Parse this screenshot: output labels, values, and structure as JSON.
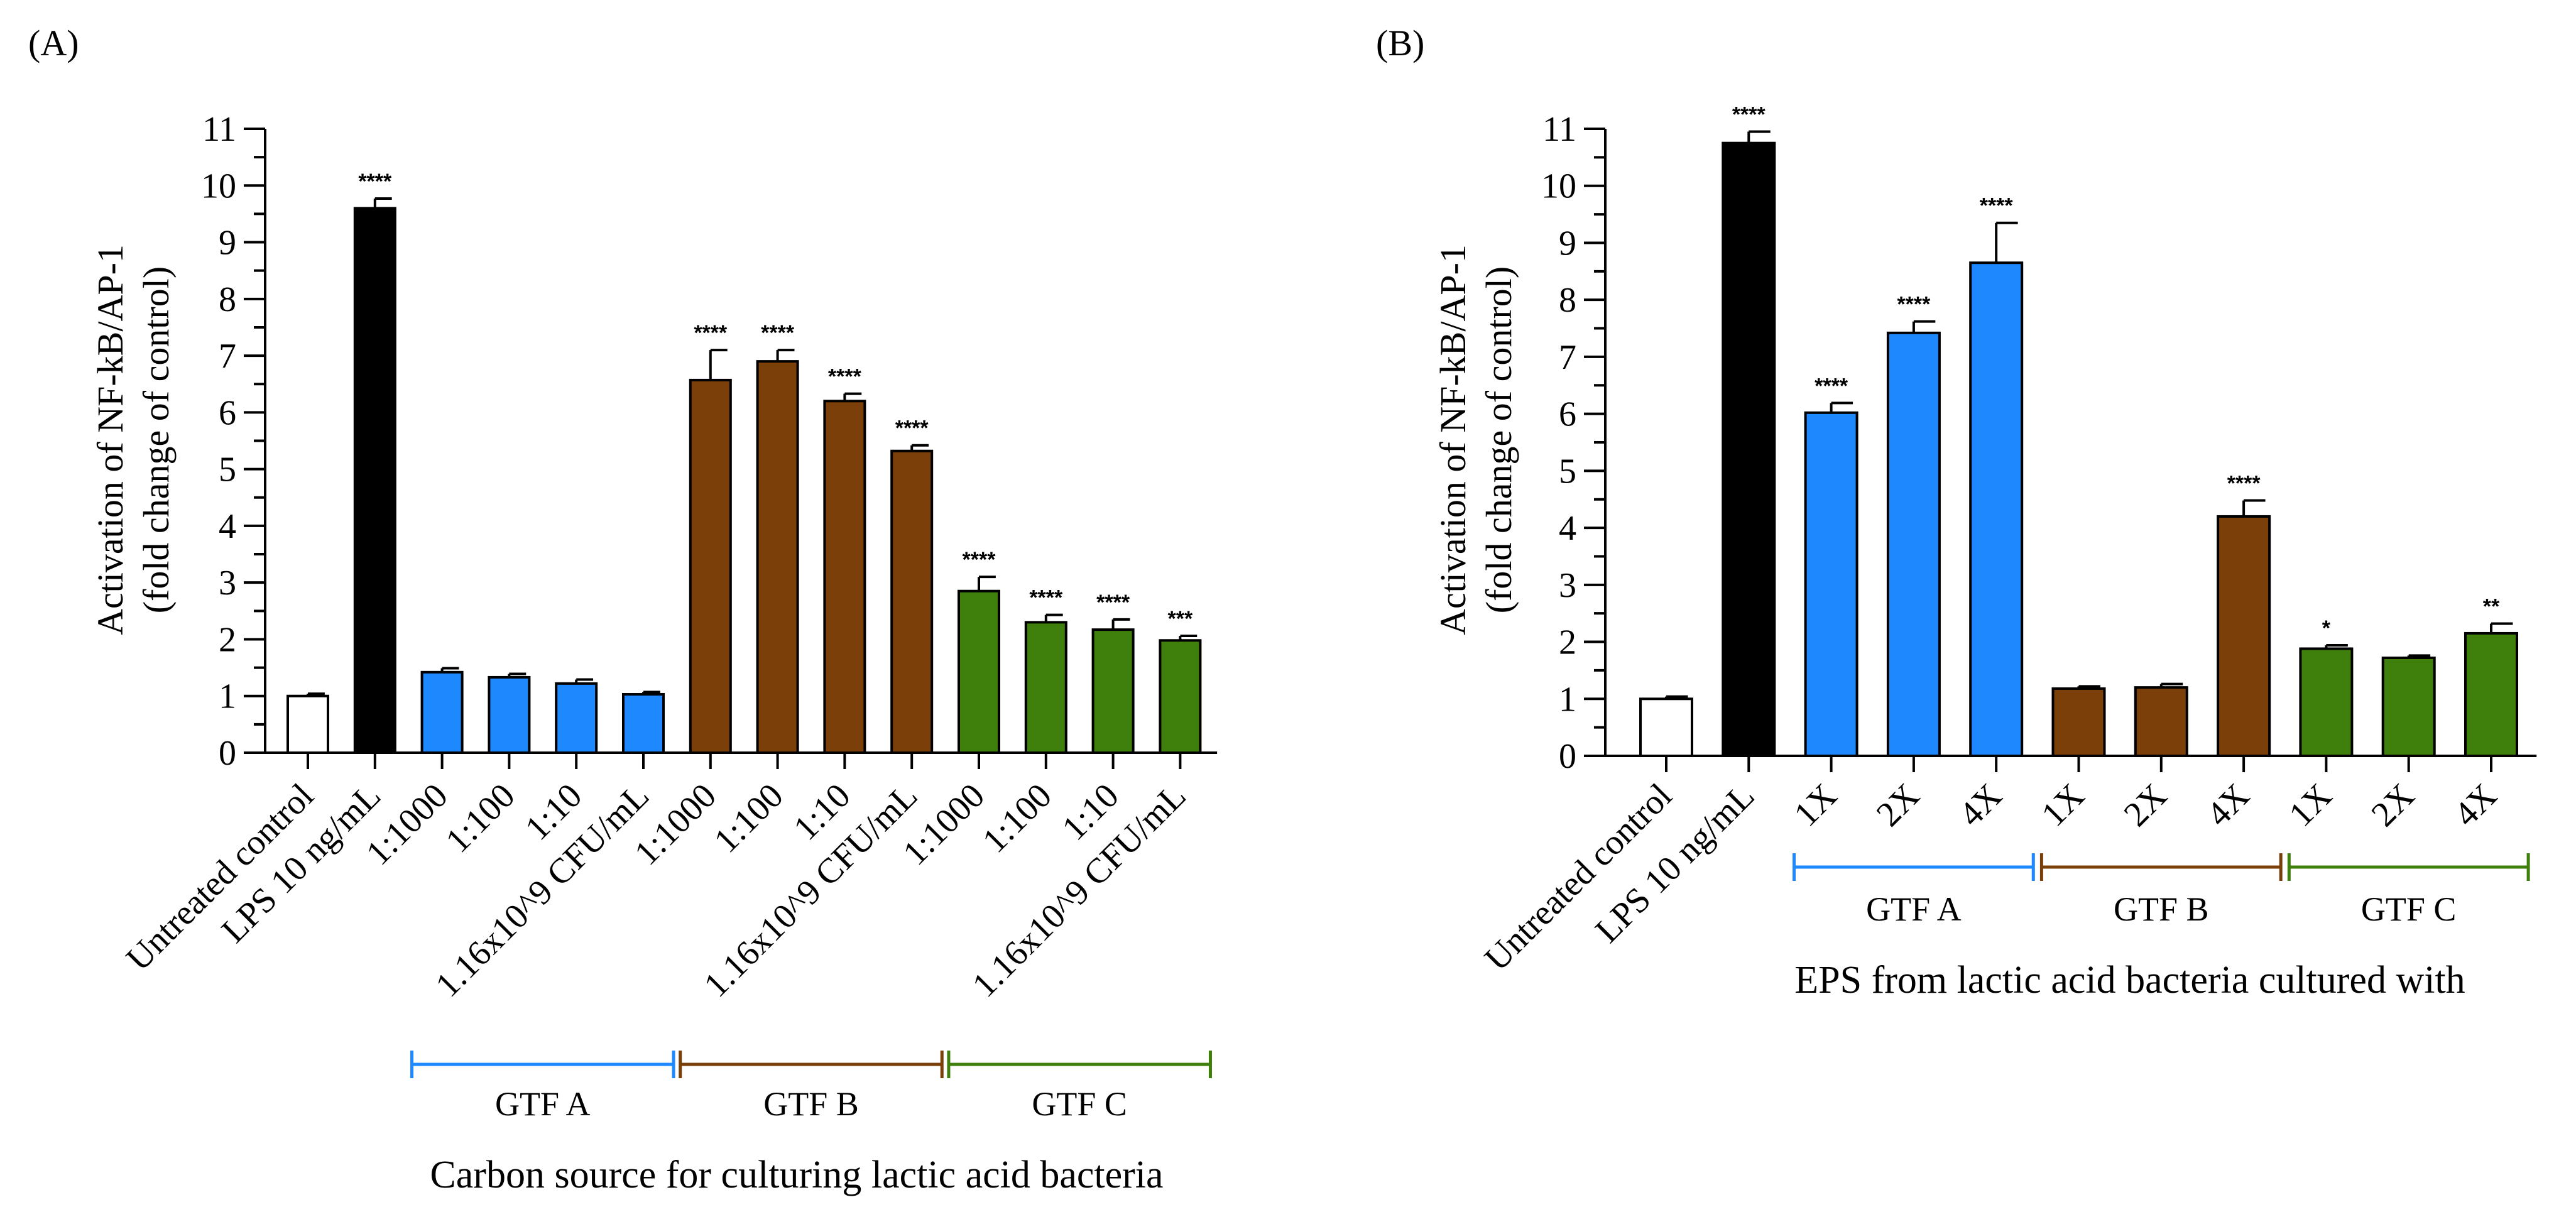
{
  "colors": {
    "white": "#ffffff",
    "black": "#000000",
    "blue": "#1e88ff",
    "brown": "#7b3f0a",
    "green": "#3f7f0c"
  },
  "chart_data": [
    {
      "panel": "(A)",
      "type": "bar",
      "title": "",
      "ylabel": "Activation of NF-kB/AP-1",
      "ylabel2": "(fold change of control)",
      "xlabel": "Carbon source for culturing lactic acid bacteria",
      "ylim": [
        0,
        11
      ],
      "yticks": [
        0,
        1,
        2,
        3,
        4,
        5,
        6,
        7,
        8,
        9,
        10,
        11
      ],
      "categories": [
        "Untreated control",
        "LPS 10 ng/mL",
        "1:1000",
        "1:100",
        "1:10",
        "1.16x10^9 CFU/mL",
        "1:1000",
        "1:100",
        "1:10",
        "1.16x10^9 CFU/mL",
        "1:1000",
        "1:100",
        "1:10",
        "1.16x10^9 CFU/mL"
      ],
      "values": [
        1.0,
        9.6,
        1.42,
        1.33,
        1.22,
        1.03,
        6.57,
        6.9,
        6.2,
        5.32,
        2.85,
        2.3,
        2.17,
        1.98
      ],
      "errors": [
        0.04,
        0.17,
        0.07,
        0.06,
        0.07,
        0.04,
        0.53,
        0.2,
        0.13,
        0.1,
        0.25,
        0.13,
        0.18,
        0.08
      ],
      "significance": [
        "",
        "****",
        "",
        "",
        "",
        "",
        "****",
        "****",
        "****",
        "****",
        "****",
        "****",
        "****",
        "***"
      ],
      "bar_colors": [
        "white",
        "black",
        "blue",
        "blue",
        "blue",
        "blue",
        "brown",
        "brown",
        "brown",
        "brown",
        "green",
        "green",
        "green",
        "green"
      ],
      "groups": [
        {
          "label": "GTF A",
          "color": "blue",
          "from": 2,
          "to": 5
        },
        {
          "label": "GTF B",
          "color": "brown",
          "from": 6,
          "to": 9
        },
        {
          "label": "GTF C",
          "color": "green",
          "from": 10,
          "to": 13
        }
      ]
    },
    {
      "panel": "(B)",
      "type": "bar",
      "title": "",
      "ylabel": "Activation of NF-kB/AP-1",
      "ylabel2": "(fold change of control)",
      "xlabel": "EPS from lactic acid bacteria cultured with",
      "ylim": [
        0,
        11
      ],
      "yticks": [
        0,
        1,
        2,
        3,
        4,
        5,
        6,
        7,
        8,
        9,
        10,
        11
      ],
      "categories": [
        "Untreated control",
        "LPS 10 ng/mL",
        "1X",
        "2X",
        "4X",
        "1X",
        "2X",
        "4X",
        "1X",
        "2X",
        "4X"
      ],
      "values": [
        1.0,
        10.75,
        6.02,
        7.42,
        8.65,
        1.18,
        1.2,
        4.2,
        1.88,
        1.72,
        2.15
      ],
      "errors": [
        0.04,
        0.2,
        0.17,
        0.2,
        0.7,
        0.04,
        0.06,
        0.28,
        0.06,
        0.04,
        0.17
      ],
      "significance": [
        "",
        "****",
        "****",
        "****",
        "****",
        "",
        "",
        "****",
        "*",
        "",
        "**"
      ],
      "bar_colors": [
        "white",
        "black",
        "blue",
        "blue",
        "blue",
        "brown",
        "brown",
        "brown",
        "green",
        "green",
        "green"
      ],
      "groups": [
        {
          "label": "GTF A",
          "color": "blue",
          "from": 2,
          "to": 4
        },
        {
          "label": "GTF B",
          "color": "brown",
          "from": 5,
          "to": 7
        },
        {
          "label": "GTF C",
          "color": "green",
          "from": 8,
          "to": 10
        }
      ]
    }
  ]
}
